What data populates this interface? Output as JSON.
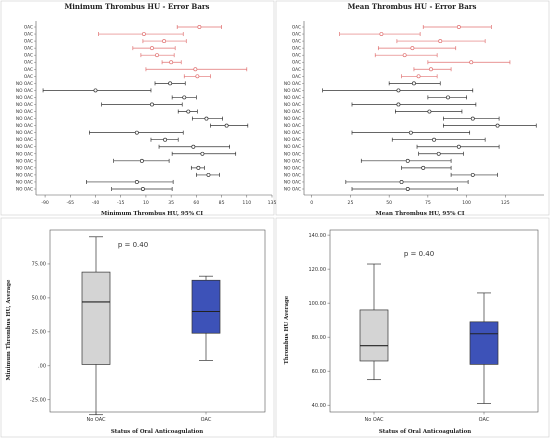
{
  "colors": {
    "oac": "#e07070",
    "no_oac": "#333333",
    "box_gray": "#d4d4d4",
    "box_blue": "#3d52b8"
  },
  "chart_data": [
    {
      "type": "errorbar",
      "title": "Minimum Thrombus HU - Error Bars",
      "xlabel": "Minimum Thrombus HU, 95% CI",
      "xlim": [
        -99,
        135
      ],
      "xticks": [
        -90,
        -65,
        -40,
        -15,
        10,
        35,
        60,
        85,
        110,
        135
      ],
      "categories": [
        "OAC",
        "OAC",
        "OAC",
        "OAC",
        "OAC",
        "OAC",
        "OAC",
        "OAC",
        "NO OAC",
        "NO OAC",
        "NO OAC",
        "NO OAC",
        "NO OAC",
        "NO OAC",
        "NO OAC",
        "NO OAC",
        "NO OAC",
        "NO OAC",
        "NO OAC",
        "NO OAC",
        "NO OAC",
        "NO OAC",
        "NO OAC",
        "NO OAC"
      ],
      "mean": [
        63,
        8,
        28,
        16,
        21,
        35,
        59,
        61,
        34,
        -40,
        48,
        16,
        52,
        70,
        90,
        1,
        29,
        57,
        66,
        6,
        62,
        72,
        1,
        7
      ],
      "lower": [
        41,
        -37,
        7,
        -3,
        5,
        26,
        10,
        48,
        19,
        -92,
        36,
        -34,
        42,
        56,
        74,
        -46,
        15,
        23,
        36,
        -22,
        55,
        60,
        -49,
        -24
      ],
      "upper": [
        85,
        47,
        50,
        39,
        38,
        45,
        110,
        74,
        49,
        15,
        60,
        46,
        61,
        86,
        111,
        47,
        42,
        93,
        99,
        33,
        68,
        83,
        37,
        36
      ]
    },
    {
      "type": "errorbar",
      "title": "Mean Thrombus HU - Error Bars",
      "xlabel": "Mean Thrombus HU, 95% CI",
      "xlim": [
        -5,
        150
      ],
      "xticks": [
        0,
        25,
        50,
        75,
        100,
        125
      ],
      "categories": [
        "OAC",
        "OAC",
        "OAC",
        "OAC",
        "OAC",
        "OAC",
        "OAC",
        "OAC",
        "NO OAC",
        "NO OAC",
        "NO OAC",
        "NO OAC",
        "NO OAC",
        "NO OAC",
        "NO OAC",
        "NO OAC",
        "NO OAC",
        "NO OAC",
        "NO OAC",
        "NO OAC",
        "NO OAC",
        "NO OAC",
        "NO OAC",
        "NO OAC"
      ],
      "mean": [
        95,
        45,
        83,
        65,
        60,
        103,
        77,
        69,
        66,
        56,
        88,
        56,
        76,
        104,
        120,
        64,
        79,
        95,
        82,
        62,
        72,
        104,
        58,
        62
      ],
      "lower": [
        72,
        18,
        55,
        43,
        41,
        75,
        66,
        58,
        50,
        7,
        75,
        26,
        54,
        85,
        85,
        26,
        52,
        68,
        69,
        32,
        58,
        90,
        22,
        26
      ],
      "upper": [
        116,
        70,
        112,
        93,
        81,
        128,
        90,
        81,
        83,
        104,
        100,
        106,
        97,
        121,
        145,
        102,
        112,
        121,
        98,
        90,
        90,
        120,
        101,
        94
      ]
    },
    {
      "type": "box",
      "annotation": "p = 0.40",
      "ylabel": "Minimum Thrombus HU, Average",
      "xlabel": "Status of Oral Anticoagulation",
      "ylim": [
        -34,
        100
      ],
      "yticks": [
        -25.0,
        0.0,
        25.0,
        50.0,
        75.0
      ],
      "ytick_labels": [
        "-25.00",
        ".00",
        "25.00",
        "50.00",
        "75.00"
      ],
      "categories": [
        "No OAC",
        "OAC"
      ],
      "boxes": [
        {
          "name": "No OAC",
          "min": -36,
          "q1": 1,
          "median": 47,
          "q3": 69,
          "max": 95,
          "color": "#d4d4d4"
        },
        {
          "name": "OAC",
          "min": 4,
          "q1": 24,
          "median": 40,
          "q3": 63,
          "max": 66,
          "color": "#3d52b8"
        }
      ]
    },
    {
      "type": "box",
      "annotation": "p = 0.40",
      "ylabel": "Thrombus HU Average",
      "xlabel": "Status of Oral Anticoagulation",
      "ylim": [
        36,
        143
      ],
      "yticks": [
        40,
        60,
        80,
        100,
        120,
        140
      ],
      "ytick_labels": [
        "40.00",
        "60.00",
        "80.00",
        "100.00",
        "120.00",
        "140.00"
      ],
      "categories": [
        "No OAC",
        "OAC"
      ],
      "boxes": [
        {
          "name": "No OAC",
          "min": 55,
          "q1": 66,
          "median": 75,
          "q3": 96,
          "max": 123,
          "color": "#d4d4d4"
        },
        {
          "name": "OAC",
          "min": 41,
          "q1": 64,
          "median": 82,
          "q3": 89,
          "max": 106,
          "color": "#3d52b8"
        }
      ]
    }
  ]
}
